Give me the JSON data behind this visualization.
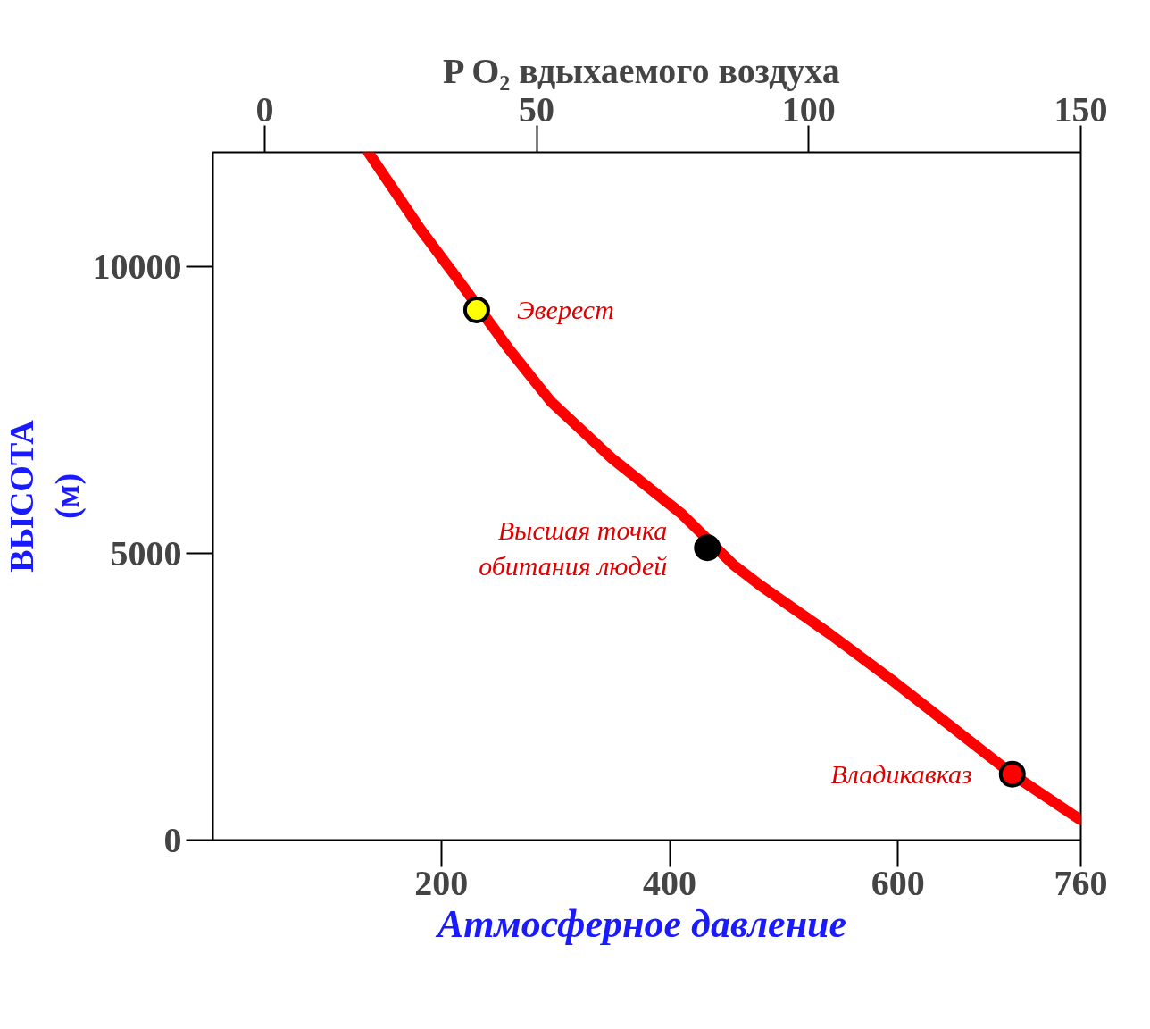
{
  "chart_data": {
    "type": "line",
    "xlabel": "Атмосферное  давление",
    "ylabel": "ВЫСОТА\n(м)",
    "x2label": "P O₂  вдыхаемого воздуха",
    "xlim": [
      0,
      760
    ],
    "xticks": [
      200,
      400,
      600,
      760
    ],
    "ylim": [
      0,
      12000
    ],
    "yticks": [
      0,
      5000,
      10000
    ],
    "x2lim": [
      -9.5,
      150
    ],
    "x2ticks": [
      0,
      50,
      100,
      150
    ],
    "grid": false,
    "line_style": "solid",
    "marker": "none",
    "series": [
      {
        "color": "#ff0000",
        "x": [
          136,
          182,
          212,
          258,
          296,
          350,
          410,
          456,
          479,
          540,
          594,
          639,
          700,
          760
        ],
        "values": [
          12000,
          10650,
          9850,
          8600,
          7650,
          6650,
          5700,
          4800,
          4450,
          3600,
          2800,
          2100,
          1150,
          350
        ]
      },
      {
        "type": "scatter",
        "marker": "circle",
        "x": [
          231,
          433,
          700
        ],
        "values": [
          9250,
          5100,
          1150
        ],
        "colors": [
          "#ffff00",
          "#000000",
          "#ff0000"
        ]
      }
    ],
    "annotations": [
      {
        "text": "Эверест",
        "x": 231,
        "y": 9250
      },
      {
        "text": "Высшая точка\nобитания людей",
        "x": 433,
        "y": 5100
      },
      {
        "text": "Владикавказ",
        "x": 700,
        "y": 1150
      }
    ]
  }
}
